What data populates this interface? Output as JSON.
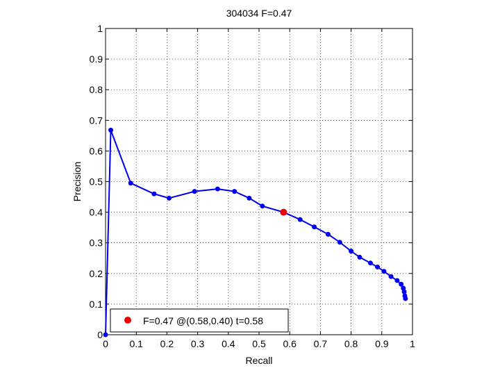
{
  "chart_data": {
    "type": "line",
    "title": "304034 F=0.47",
    "xlabel": "Recall",
    "ylabel": "Precision",
    "xlim": [
      0,
      1
    ],
    "ylim": [
      0,
      1
    ],
    "xticks": [
      0,
      0.1,
      0.2,
      0.3,
      0.4,
      0.5,
      0.6,
      0.7,
      0.8,
      0.9,
      1
    ],
    "yticks": [
      0,
      0.1,
      0.2,
      0.3,
      0.4,
      0.5,
      0.6,
      0.7,
      0.8,
      0.9,
      1
    ],
    "xtick_labels": [
      "0",
      "0.1",
      "0.2",
      "0.3",
      "0.4",
      "0.5",
      "0.6",
      "0.7",
      "0.8",
      "0.9",
      "1"
    ],
    "ytick_labels": [
      "0",
      "0.1",
      "0.2",
      "0.3",
      "0.4",
      "0.5",
      "0.6",
      "0.7",
      "0.8",
      "0.9",
      "1"
    ],
    "grid": true,
    "grid_style": "dotted",
    "legend_position": "bottom-left",
    "series": [
      {
        "color": "#0000ee",
        "x": [
          0.0,
          0.017,
          0.082,
          0.158,
          0.207,
          0.29,
          0.365,
          0.42,
          0.468,
          0.511,
          0.58,
          0.634,
          0.68,
          0.725,
          0.763,
          0.8,
          0.828,
          0.863,
          0.886,
          0.907,
          0.93,
          0.95,
          0.963,
          0.97,
          0.973,
          0.975,
          0.977
        ],
        "y": [
          0.0,
          0.668,
          0.495,
          0.46,
          0.446,
          0.468,
          0.476,
          0.468,
          0.446,
          0.42,
          0.4,
          0.376,
          0.352,
          0.328,
          0.302,
          0.273,
          0.253,
          0.234,
          0.221,
          0.207,
          0.19,
          0.177,
          0.165,
          0.152,
          0.14,
          0.127,
          0.118
        ]
      }
    ],
    "highlight_point": {
      "x": 0.58,
      "y": 0.4,
      "color": "#ee0000",
      "label": "F=0.47 @(0.58,0.40) t=0.58"
    }
  }
}
